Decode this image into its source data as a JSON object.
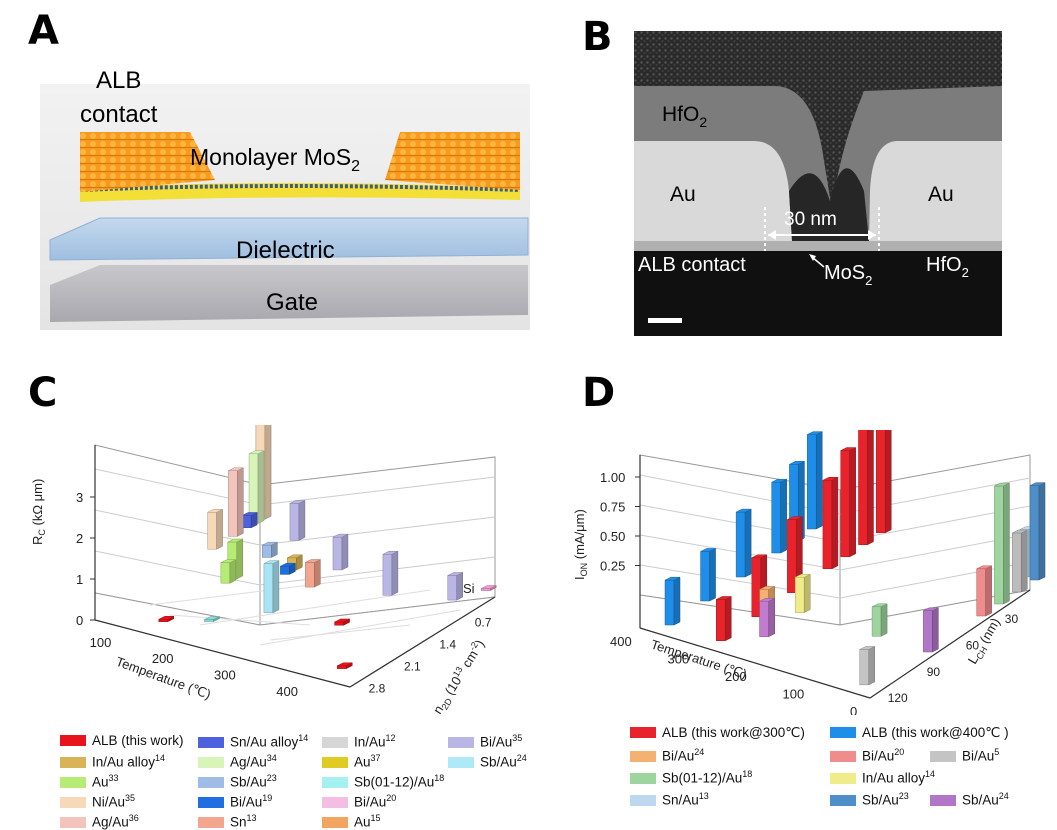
{
  "panels": {
    "a": {
      "letter": "A",
      "labels": {
        "alb": "ALB",
        "contact": "contact",
        "mono": "Monolayer MoS",
        "mono_sub": "2",
        "dielectric": "Dielectric",
        "gate": "Gate"
      }
    },
    "b": {
      "letter": "B",
      "labels": {
        "hfo": "HfO",
        "hfo_sub": "2",
        "au_left": "Au",
        "au_right": "Au",
        "gap": "30 nm",
        "alb_contact": "ALB contact",
        "mos": "MoS",
        "mos_sub": "2",
        "hfo2": "HfO",
        "hfo2_sub": "2"
      }
    },
    "c": {
      "letter": "C"
    },
    "d": {
      "letter": "D"
    }
  },
  "chart_data": [
    {
      "id": "C",
      "type": "bar3d",
      "ylabel": "R",
      "ylabel_sub": "C",
      "ylabel_unit": " (kΩ μm)",
      "xlabel": "Temperature (℃)",
      "zlabel": "n",
      "zlabel_sub": "2D",
      "zlabel_unit": " (10",
      "zlabel_sup": "13",
      "zlabel_unit2": " cm",
      "zlabel_sup2": "-2",
      "zlabel_close": ")",
      "annotation": "Si",
      "ylim": [
        0,
        3.5
      ],
      "y_ticks": [
        "0",
        "1",
        "2",
        "3"
      ],
      "x_ticks": [
        "100",
        "200",
        "300",
        "400"
      ],
      "z_ticks": [
        "2.8",
        "2.1",
        "1.4",
        "0.7"
      ],
      "bars": [
        {
          "series": "ALB (this work)",
          "temp": 100,
          "n": 2.8,
          "value": 0.06,
          "color": "#e8141b"
        },
        {
          "series": "ALB (this work)",
          "temp": 300,
          "n": 2.1,
          "value": 0.08,
          "color": "#e8141b"
        },
        {
          "series": "ALB (this work)",
          "temp": 380,
          "n": 2.8,
          "value": 0.07,
          "color": "#e8141b"
        },
        {
          "series": "Sb(01-12)/Au",
          "temp": 150,
          "n": 2.6,
          "value": 0.04,
          "color": "#88dcdc"
        },
        {
          "series": "Ni/Au",
          "temp": 25,
          "n": 1.4,
          "value": 0.9,
          "color": "#f7d9b9"
        },
        {
          "series": "Ag/Au",
          "temp": 25,
          "n": 1.1,
          "value": 1.6,
          "color": "#f3c4bc"
        },
        {
          "series": "Sn/Au alloy",
          "temp": 25,
          "n": 0.9,
          "value": 0.3,
          "color": "#4e62e0"
        },
        {
          "series": "Ag/Au",
          "temp": 25,
          "n": 0.8,
          "value": 1.7,
          "color": "#d8f4b8"
        },
        {
          "series": "Sb/Au",
          "temp": 100,
          "n": 1.3,
          "value": 0.3,
          "color": "#9fbce8"
        },
        {
          "series": "Bi/Au",
          "temp": 100,
          "n": 0.9,
          "value": 0.9,
          "color": "#b9b6e6"
        },
        {
          "series": "In/Au",
          "temp": 25,
          "n": 0.7,
          "value": 3.5,
          "color": "#d6d6d6"
        },
        {
          "series": "Ni/Au",
          "temp": 25,
          "n": 0.7,
          "value": 3.0,
          "color": "#f7d9b9"
        },
        {
          "series": "Au",
          "temp": 100,
          "n": 1.9,
          "value": 0.5,
          "color": "#b7ec74"
        },
        {
          "series": "Au",
          "temp": 100,
          "n": 1.8,
          "value": 0.9,
          "color": "#b7ec74"
        },
        {
          "series": "Bi/Au",
          "temp": 150,
          "n": 1.5,
          "value": 0.2,
          "color": "#1f6fe0"
        },
        {
          "series": "In/Au alloy",
          "temp": 150,
          "n": 1.4,
          "value": 0.3,
          "color": "#d9b357"
        },
        {
          "series": "Sb/Au",
          "temp": 200,
          "n": 2.2,
          "value": 1.2,
          "color": "#a9e4f5"
        },
        {
          "series": "Sn",
          "temp": 200,
          "n": 1.6,
          "value": 0.6,
          "color": "#f4a58f"
        },
        {
          "series": "Bi/Au",
          "temp": 200,
          "n": 1.2,
          "value": 0.8,
          "color": "#b9b6e6"
        },
        {
          "series": "Bi/Au",
          "temp": 300,
          "n": 1.4,
          "value": 1.0,
          "color": "#b9b6e6"
        },
        {
          "series": "Bi/Au",
          "temp": 380,
          "n": 1.2,
          "value": 0.6,
          "color": "#b9b6e6"
        },
        {
          "series": "Bi/Au",
          "temp": 400,
          "n": 0.9,
          "value": 0.05,
          "color": "#f29ad0"
        }
      ],
      "legend": [
        {
          "label": "ALB (this work)",
          "sup": "",
          "color": "#e8141b"
        },
        {
          "label": "In/Au alloy",
          "sup": "14",
          "color": "#d9b357"
        },
        {
          "label": "Au",
          "sup": "33",
          "color": "#b7ec74"
        },
        {
          "label": "Ni/Au",
          "sup": "35",
          "color": "#f7d9b9"
        },
        {
          "label": "Ag/Au",
          "sup": "36",
          "color": "#f3c4bc"
        },
        {
          "label": "Sn/Au alloy",
          "sup": "14",
          "color": "#4e62e0"
        },
        {
          "label": "Ag/Au",
          "sup": "34",
          "color": "#d8f4b8"
        },
        {
          "label": "Sb/Au",
          "sup": "23",
          "color": "#9fbce8"
        },
        {
          "label": "Bi/Au",
          "sup": "19",
          "color": "#1f6fe0"
        },
        {
          "label": "Sn",
          "sup": "13",
          "color": "#f4a58f"
        },
        {
          "label": "In/Au",
          "sup": "12",
          "color": "#d6d6d6"
        },
        {
          "label": "Au",
          "sup": "37",
          "color": "#e0cb23"
        },
        {
          "label": "Sb(01-12)/Au",
          "sup": "18",
          "color": "#a5f1f1"
        },
        {
          "label": "Bi/Au",
          "sup": "20",
          "color": "#f4bde2"
        },
        {
          "label": "Au",
          "sup": "15",
          "color": "#f2a460"
        },
        {
          "label": "Bi/Au",
          "sup": "35",
          "color": "#b9b6e6"
        },
        {
          "label": "Sb/Au",
          "sup": "24",
          "color": "#aee9f7"
        }
      ]
    },
    {
      "id": "D",
      "type": "bar3d",
      "ylabel": "I",
      "ylabel_sub": "ON",
      "ylabel_unit": " (mA/μm)",
      "xlabel": "Temperature (℃)",
      "zlabel": "L",
      "zlabel_sub": "CH",
      "zlabel_unit": " (nm)",
      "ylim": [
        0,
        1.2
      ],
      "y_ticks": [
        "0.25",
        "0.50",
        "0.75",
        "1.00"
      ],
      "x_ticks": [
        "400",
        "300",
        "200",
        "100",
        "0"
      ],
      "z_ticks": [
        "120",
        "90",
        "60",
        "30"
      ],
      "bars": [
        {
          "series": "ALB (this work@400℃)",
          "temp": 400,
          "lch": 120,
          "value": 0.38,
          "color": "#1f8ee8"
        },
        {
          "series": "ALB (this work@400℃)",
          "temp": 400,
          "lch": 100,
          "value": 0.42,
          "color": "#1f8ee8"
        },
        {
          "series": "ALB (this work@400℃)",
          "temp": 400,
          "lch": 80,
          "value": 0.55,
          "color": "#1f8ee8"
        },
        {
          "series": "ALB (this work@400℃)",
          "temp": 400,
          "lch": 60,
          "value": 0.6,
          "color": "#1f8ee8"
        },
        {
          "series": "ALB (this work@400℃)",
          "temp": 400,
          "lch": 50,
          "value": 0.65,
          "color": "#1f8ee8"
        },
        {
          "series": "ALB (this work@400℃)",
          "temp": 400,
          "lch": 40,
          "value": 0.8,
          "color": "#1f8ee8"
        },
        {
          "series": "ALB (this work@300℃)",
          "temp": 300,
          "lch": 120,
          "value": 0.35,
          "color": "#e8232b"
        },
        {
          "series": "ALB (this work@300℃)",
          "temp": 300,
          "lch": 100,
          "value": 0.5,
          "color": "#e8232b"
        },
        {
          "series": "ALB (this work@300℃)",
          "temp": 300,
          "lch": 80,
          "value": 0.62,
          "color": "#e8232b"
        },
        {
          "series": "ALB (this work@300℃)",
          "temp": 300,
          "lch": 60,
          "value": 0.75,
          "color": "#e8232b"
        },
        {
          "series": "ALB (this work@300℃)",
          "temp": 300,
          "lch": 50,
          "value": 0.9,
          "color": "#e8232b"
        },
        {
          "series": "ALB (this work@300℃)",
          "temp": 300,
          "lch": 40,
          "value": 0.98,
          "color": "#e8232b"
        },
        {
          "series": "ALB (this work@300℃)",
          "temp": 300,
          "lch": 30,
          "value": 1.15,
          "color": "#e8232b"
        },
        {
          "series": "Bi/Au",
          "temp": 250,
          "lch": 110,
          "value": 0.4,
          "color": "#f5b171"
        },
        {
          "series": "Sb/Au",
          "temp": 250,
          "lch": 110,
          "value": 0.3,
          "color": "#c27bcf"
        },
        {
          "series": "In/Au alloy",
          "temp": 250,
          "lch": 90,
          "value": 0.3,
          "color": "#f0ec8a"
        },
        {
          "series": "Sb(01-12)/Au",
          "temp": 100,
          "lch": 90,
          "value": 0.25,
          "color": "#9ed49e"
        },
        {
          "series": "Sn/Au",
          "temp": 20,
          "lch": 30,
          "value": 0.4,
          "color": "#bcd7ee"
        },
        {
          "series": "Bi/Au",
          "temp": 20,
          "lch": 120,
          "value": 0.3,
          "color": "#c4c4c4"
        },
        {
          "series": "Sb/Au",
          "temp": 0,
          "lch": 90,
          "value": 0.35,
          "color": "#b276c8"
        },
        {
          "series": "Bi/Au",
          "temp": 0,
          "lch": 60,
          "value": 0.4,
          "color": "#f08c8c"
        },
        {
          "series": "Sb(01-12)/Au",
          "temp": 0,
          "lch": 50,
          "value": 1.0,
          "color": "#9ed49e"
        },
        {
          "series": "Bi/Au",
          "temp": 0,
          "lch": 40,
          "value": 0.5,
          "color": "#bcbcbc"
        },
        {
          "series": "Sb/Au",
          "temp": 0,
          "lch": 30,
          "value": 0.8,
          "color": "#4f8fc9"
        }
      ],
      "legend": [
        {
          "label": "ALB (this work@300℃)",
          "sup": "",
          "color": "#e8232b"
        },
        {
          "label": "ALB (this work@400℃ )",
          "sup": "",
          "color": "#1f8ee8"
        },
        {
          "label": "Bi/Au",
          "sup": "24",
          "color": "#f5b171"
        },
        {
          "label": "Bi/Au",
          "sup": "20",
          "color": "#f08c8c"
        },
        {
          "label": "Bi/Au",
          "sup": "5",
          "color": "#c4c4c4"
        },
        {
          "label": "Sb(01-12)/Au",
          "sup": "18",
          "color": "#9ed49e"
        },
        {
          "label": "In/Au alloy",
          "sup": "14",
          "color": "#f0ec8a"
        },
        {
          "label": "Sn/Au",
          "sup": "13",
          "color": "#bcd7ee"
        },
        {
          "label": "Sb/Au",
          "sup": "23",
          "color": "#4f8fc9"
        },
        {
          "label": "Sb/Au",
          "sup": "24",
          "color": "#b276c8"
        }
      ]
    }
  ]
}
